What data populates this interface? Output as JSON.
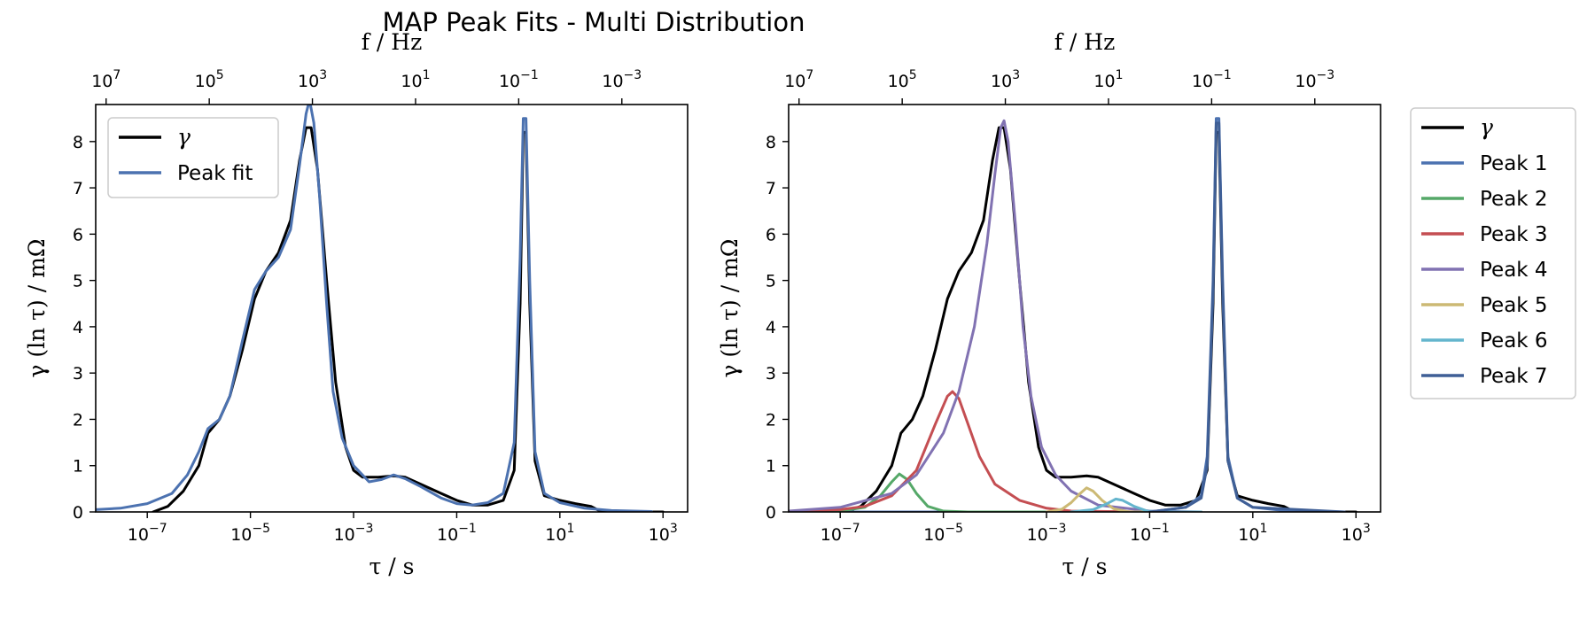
{
  "title": "MAP Peak Fits - Multi Distribution",
  "chart_data": [
    {
      "type": "line",
      "xlabel": "τ / s",
      "ylabel": "γ (ln τ) / mΩ",
      "top_xlabel": "f / Hz",
      "xscale": "log",
      "top_xscale": "log",
      "xlim": [
        1e-08,
        3000
      ],
      "ylim": [
        0,
        8.8
      ],
      "x_ticks": [
        "10^-7",
        "10^-5",
        "10^-3",
        "10^-1",
        "10^1",
        "10^3"
      ],
      "top_ticks": [
        "10^7",
        "10^5",
        "10^3",
        "10^1",
        "10^-1",
        "10^-3"
      ],
      "y_ticks": [
        0,
        1,
        2,
        3,
        4,
        5,
        6,
        7,
        8
      ],
      "grid": false,
      "legend_position": "top-left",
      "series": [
        {
          "name": "γ",
          "color": "#000000",
          "points": [
            [
              1.3e-07,
              0
            ],
            [
              2.5e-07,
              0.12
            ],
            [
              5e-07,
              0.45
            ],
            [
              1e-06,
              1.0
            ],
            [
              1.5e-06,
              1.7
            ],
            [
              2.5e-06,
              2.0
            ],
            [
              4e-06,
              2.5
            ],
            [
              7e-06,
              3.5
            ],
            [
              1.2e-05,
              4.6
            ],
            [
              2e-05,
              5.2
            ],
            [
              3.5e-05,
              5.6
            ],
            [
              6e-05,
              6.3
            ],
            [
              9e-05,
              7.6
            ],
            [
              0.00012,
              8.3
            ],
            [
              0.00015,
              8.3
            ],
            [
              0.0002,
              7.4
            ],
            [
              0.0003,
              5.0
            ],
            [
              0.00045,
              2.8
            ],
            [
              0.0007,
              1.4
            ],
            [
              0.001,
              0.9
            ],
            [
              0.0015,
              0.75
            ],
            [
              0.003,
              0.75
            ],
            [
              0.006,
              0.78
            ],
            [
              0.01,
              0.75
            ],
            [
              0.02,
              0.6
            ],
            [
              0.05,
              0.4
            ],
            [
              0.1,
              0.25
            ],
            [
              0.2,
              0.15
            ],
            [
              0.4,
              0.15
            ],
            [
              0.8,
              0.25
            ],
            [
              1.3,
              0.9
            ],
            [
              1.7,
              4.5
            ],
            [
              1.95,
              8.2
            ],
            [
              2.2,
              8.2
            ],
            [
              2.6,
              4.5
            ],
            [
              3.3,
              1.1
            ],
            [
              5,
              0.35
            ],
            [
              10,
              0.25
            ],
            [
              20,
              0.18
            ],
            [
              40,
              0.12
            ],
            [
              60,
              0.02
            ],
            [
              100,
              0
            ],
            [
              1000,
              0
            ]
          ]
        },
        {
          "name": "Peak fit",
          "color": "#4c72b0",
          "points": [
            [
              1e-08,
              0.05
            ],
            [
              3e-08,
              0.08
            ],
            [
              1e-07,
              0.18
            ],
            [
              3e-07,
              0.4
            ],
            [
              6e-07,
              0.8
            ],
            [
              1e-06,
              1.3
            ],
            [
              1.5e-06,
              1.8
            ],
            [
              2.5e-06,
              2.0
            ],
            [
              4e-06,
              2.5
            ],
            [
              7e-06,
              3.7
            ],
            [
              1.2e-05,
              4.8
            ],
            [
              2e-05,
              5.2
            ],
            [
              3.5e-05,
              5.5
            ],
            [
              6e-05,
              6.1
            ],
            [
              9e-05,
              7.5
            ],
            [
              0.00012,
              8.6
            ],
            [
              0.00014,
              8.9
            ],
            [
              0.00017,
              8.4
            ],
            [
              0.00022,
              6.8
            ],
            [
              0.0003,
              4.5
            ],
            [
              0.0004,
              2.6
            ],
            [
              0.0006,
              1.6
            ],
            [
              0.001,
              1.0
            ],
            [
              0.002,
              0.65
            ],
            [
              0.0035,
              0.7
            ],
            [
              0.006,
              0.8
            ],
            [
              0.01,
              0.72
            ],
            [
              0.02,
              0.55
            ],
            [
              0.05,
              0.3
            ],
            [
              0.1,
              0.18
            ],
            [
              0.2,
              0.15
            ],
            [
              0.4,
              0.2
            ],
            [
              0.8,
              0.4
            ],
            [
              1.3,
              1.5
            ],
            [
              1.7,
              5.5
            ],
            [
              1.95,
              8.5
            ],
            [
              2.2,
              8.5
            ],
            [
              2.6,
              5.0
            ],
            [
              3.3,
              1.3
            ],
            [
              5,
              0.4
            ],
            [
              10,
              0.2
            ],
            [
              30,
              0.08
            ],
            [
              100,
              0.03
            ],
            [
              600,
              0.01
            ]
          ]
        }
      ]
    },
    {
      "type": "line",
      "xlabel": "τ / s",
      "ylabel": "γ (ln τ) / mΩ",
      "top_xlabel": "f / Hz",
      "xscale": "log",
      "top_xscale": "log",
      "xlim": [
        1e-08,
        3000
      ],
      "ylim": [
        0,
        8.8
      ],
      "x_ticks": [
        "10^-7",
        "10^-5",
        "10^-3",
        "10^-1",
        "10^1",
        "10^3"
      ],
      "top_ticks": [
        "10^7",
        "10^5",
        "10^3",
        "10^1",
        "10^-1",
        "10^-3"
      ],
      "y_ticks": [
        0,
        1,
        2,
        3,
        4,
        5,
        6,
        7,
        8
      ],
      "grid": false,
      "legend_position": "outside-right",
      "series": [
        {
          "name": "γ",
          "color": "#000000",
          "points": [
            [
              1.3e-07,
              0
            ],
            [
              2.5e-07,
              0.12
            ],
            [
              5e-07,
              0.45
            ],
            [
              1e-06,
              1.0
            ],
            [
              1.5e-06,
              1.7
            ],
            [
              2.5e-06,
              2.0
            ],
            [
              4e-06,
              2.5
            ],
            [
              7e-06,
              3.5
            ],
            [
              1.2e-05,
              4.6
            ],
            [
              2e-05,
              5.2
            ],
            [
              3.5e-05,
              5.6
            ],
            [
              6e-05,
              6.3
            ],
            [
              9e-05,
              7.6
            ],
            [
              0.00012,
              8.3
            ],
            [
              0.00015,
              8.3
            ],
            [
              0.0002,
              7.4
            ],
            [
              0.0003,
              5.0
            ],
            [
              0.00045,
              2.8
            ],
            [
              0.0007,
              1.4
            ],
            [
              0.001,
              0.9
            ],
            [
              0.0015,
              0.75
            ],
            [
              0.003,
              0.75
            ],
            [
              0.006,
              0.78
            ],
            [
              0.01,
              0.75
            ],
            [
              0.02,
              0.6
            ],
            [
              0.05,
              0.4
            ],
            [
              0.1,
              0.25
            ],
            [
              0.2,
              0.15
            ],
            [
              0.4,
              0.15
            ],
            [
              0.8,
              0.25
            ],
            [
              1.3,
              0.9
            ],
            [
              1.7,
              4.5
            ],
            [
              1.95,
              8.2
            ],
            [
              2.2,
              8.2
            ],
            [
              2.6,
              4.5
            ],
            [
              3.3,
              1.1
            ],
            [
              5,
              0.35
            ],
            [
              10,
              0.25
            ],
            [
              20,
              0.18
            ],
            [
              40,
              0.12
            ],
            [
              60,
              0.02
            ],
            [
              100,
              0
            ],
            [
              1000,
              0
            ]
          ]
        },
        {
          "name": "Peak 1",
          "color": "#4c72b0",
          "points": [
            [
              1e-08,
              0
            ],
            [
              0.1,
              0
            ],
            [
              0.5,
              0.1
            ],
            [
              1.0,
              0.35
            ],
            [
              1.3,
              1.2
            ],
            [
              1.7,
              5.0
            ],
            [
              1.95,
              8.5
            ],
            [
              2.2,
              8.5
            ],
            [
              2.6,
              5.0
            ],
            [
              3.3,
              1.2
            ],
            [
              5,
              0.3
            ],
            [
              10,
              0.1
            ],
            [
              50,
              0.02
            ],
            [
              600,
              0
            ]
          ]
        },
        {
          "name": "Peak 2",
          "color": "#55a868",
          "points": [
            [
              1e-08,
              0
            ],
            [
              1e-07,
              0.02
            ],
            [
              3e-07,
              0.1
            ],
            [
              6e-07,
              0.35
            ],
            [
              1e-06,
              0.65
            ],
            [
              1.4e-06,
              0.82
            ],
            [
              2e-06,
              0.7
            ],
            [
              3e-06,
              0.4
            ],
            [
              5e-06,
              0.12
            ],
            [
              1e-05,
              0.02
            ],
            [
              3e-05,
              0
            ],
            [
              0.001,
              0
            ]
          ]
        },
        {
          "name": "Peak 3",
          "color": "#c44e52",
          "points": [
            [
              1e-08,
              0.01
            ],
            [
              1e-07,
              0.05
            ],
            [
              3e-07,
              0.12
            ],
            [
              1e-06,
              0.35
            ],
            [
              3e-06,
              0.9
            ],
            [
              7e-06,
              1.9
            ],
            [
              1.2e-05,
              2.5
            ],
            [
              1.5e-05,
              2.6
            ],
            [
              2e-05,
              2.45
            ],
            [
              3e-05,
              1.9
            ],
            [
              5e-05,
              1.2
            ],
            [
              0.0001,
              0.6
            ],
            [
              0.0003,
              0.25
            ],
            [
              0.001,
              0.08
            ],
            [
              0.003,
              0.02
            ],
            [
              0.1,
              0
            ]
          ]
        },
        {
          "name": "Peak 4",
          "color": "#8172b2",
          "points": [
            [
              1e-08,
              0.02
            ],
            [
              1e-07,
              0.1
            ],
            [
              1e-06,
              0.4
            ],
            [
              3e-06,
              0.8
            ],
            [
              1e-05,
              1.7
            ],
            [
              2e-05,
              2.6
            ],
            [
              4e-05,
              4.0
            ],
            [
              7e-05,
              5.8
            ],
            [
              0.0001,
              7.3
            ],
            [
              0.00013,
              8.3
            ],
            [
              0.00015,
              8.45
            ],
            [
              0.00018,
              8.0
            ],
            [
              0.00025,
              6.2
            ],
            [
              0.00035,
              4.0
            ],
            [
              0.0005,
              2.5
            ],
            [
              0.0008,
              1.4
            ],
            [
              0.0015,
              0.8
            ],
            [
              0.003,
              0.45
            ],
            [
              0.01,
              0.15
            ],
            [
              0.1,
              0.02
            ],
            [
              1,
              0
            ]
          ]
        },
        {
          "name": "Peak 5",
          "color": "#ccb974",
          "points": [
            [
              0.001,
              0
            ],
            [
              0.002,
              0.06
            ],
            [
              0.003,
              0.2
            ],
            [
              0.0045,
              0.4
            ],
            [
              0.006,
              0.52
            ],
            [
              0.008,
              0.45
            ],
            [
              0.012,
              0.25
            ],
            [
              0.02,
              0.07
            ],
            [
              0.04,
              0
            ],
            [
              1,
              0
            ]
          ]
        },
        {
          "name": "Peak 6",
          "color": "#64b5cd",
          "points": [
            [
              0.003,
              0
            ],
            [
              0.008,
              0.05
            ],
            [
              0.015,
              0.18
            ],
            [
              0.022,
              0.28
            ],
            [
              0.03,
              0.25
            ],
            [
              0.05,
              0.12
            ],
            [
              0.09,
              0.02
            ],
            [
              0.2,
              0
            ],
            [
              1,
              0
            ]
          ]
        },
        {
          "name": "Peak 7",
          "color": "#3f5f96",
          "points": [
            [
              0.1,
              0
            ],
            [
              0.5,
              0.1
            ],
            [
              1.0,
              0.3
            ],
            [
              1.3,
              1.0
            ],
            [
              1.7,
              4.8
            ],
            [
              1.95,
              8.4
            ],
            [
              2.2,
              8.4
            ],
            [
              2.6,
              4.8
            ],
            [
              3.3,
              1.1
            ],
            [
              5,
              0.3
            ],
            [
              10,
              0.1
            ],
            [
              600,
              0
            ]
          ]
        }
      ]
    }
  ],
  "legends": {
    "left": [
      "γ",
      "Peak fit"
    ],
    "right": [
      "γ",
      "Peak 1",
      "Peak 2",
      "Peak 3",
      "Peak 4",
      "Peak 5",
      "Peak 6",
      "Peak 7"
    ]
  }
}
